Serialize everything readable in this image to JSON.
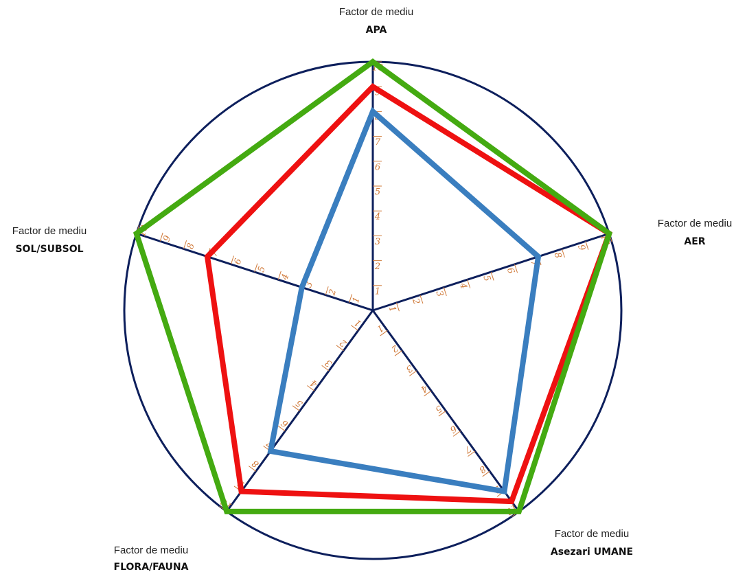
{
  "chart_data": {
    "type": "radar",
    "scale": {
      "min": 0,
      "max": 10
    },
    "axes": [
      {
        "prefix": "Factor de mediu",
        "name": "APA"
      },
      {
        "prefix": "Factor de mediu",
        "name": "AER"
      },
      {
        "prefix": "Factor de mediu",
        "name": "Asezari UMANE"
      },
      {
        "prefix": "Factor de mediu",
        "name": "FLORA/FAUNA"
      },
      {
        "prefix": "Factor de mediu",
        "name": "SOL/SUBSOL"
      }
    ],
    "tick_labels": [
      "1",
      "2",
      "3",
      "4",
      "5",
      "6",
      "7",
      "8",
      "9",
      "10"
    ],
    "series": [
      {
        "color": "#3a7ebf",
        "values": [
          8,
          7,
          9,
          7,
          3
        ]
      },
      {
        "color": "#ee1111",
        "values": [
          9,
          10,
          9.5,
          9,
          7
        ]
      },
      {
        "color": "#44aa11",
        "values": [
          10,
          10,
          10,
          10,
          10
        ]
      }
    ],
    "frame_color": "#0d1f5c",
    "tick_color": "#d07a3a"
  }
}
